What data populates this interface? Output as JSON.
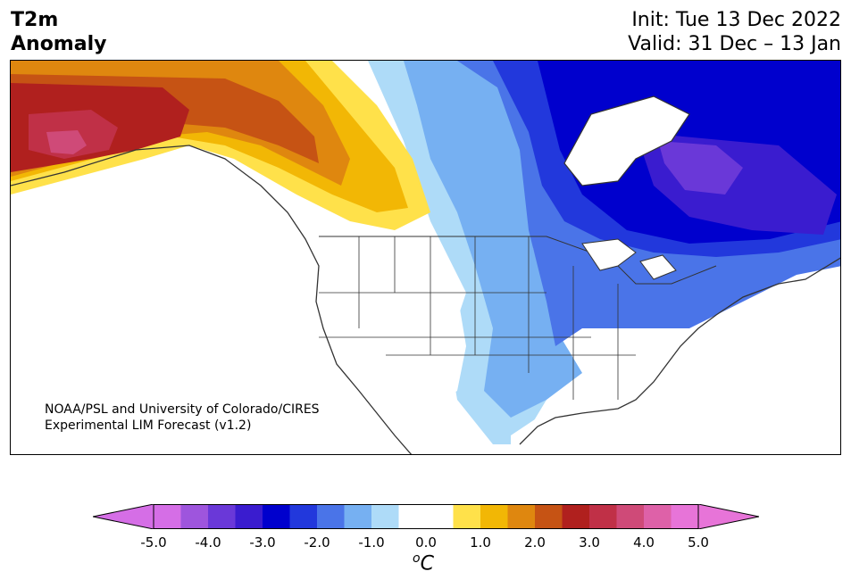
{
  "header": {
    "variable": "T2m",
    "variable_sub": "Anomaly",
    "init": "Init: Tue 13 Dec 2022",
    "valid": "Valid: 31 Dec – 13 Jan"
  },
  "credit": {
    "line1": "NOAA/PSL and University of Colorado/CIRES",
    "line2": "Experimental LIM Forecast (v1.2)"
  },
  "colorbar": {
    "levels": [
      -5.0,
      -4.5,
      -4.0,
      -3.5,
      -3.0,
      -2.5,
      -2.0,
      -1.5,
      -1.0,
      -0.5,
      0.5,
      1.0,
      1.5,
      2.0,
      2.5,
      3.0,
      3.5,
      4.0,
      4.5,
      5.0
    ],
    "colors": [
      "#d56ee6",
      "#9e55dd",
      "#6a38d8",
      "#3a1ccf",
      "#0000cd",
      "#2238dc",
      "#4a74e8",
      "#76b0f2",
      "#aedbf8",
      "#ffffff",
      "#ffe14a",
      "#f2b705",
      "#df870f",
      "#c65314",
      "#b0201e",
      "#c03047",
      "#cf4a78",
      "#de61a8",
      "#e774d8"
    ],
    "extend_low_color": "#d56ee6",
    "extend_high_color": "#e774d8",
    "tick_labels": [
      "-5.0",
      "-4.0",
      "-3.0",
      "-2.0",
      "-1.0",
      "0.0",
      "1.0",
      "2.0",
      "3.0",
      "4.0",
      "5.0"
    ],
    "unit_base": "C",
    "unit_sup": "o"
  }
}
